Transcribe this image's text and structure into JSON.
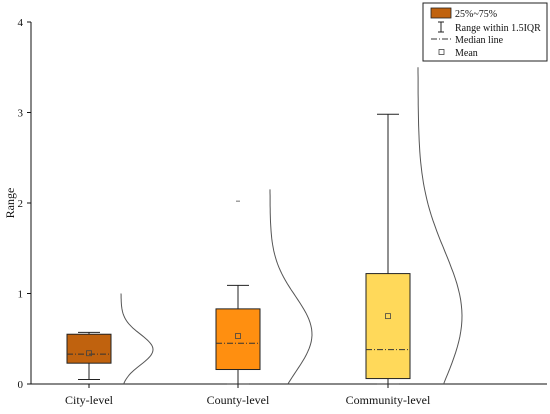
{
  "chart_data": {
    "type": "box",
    "title": "",
    "xlabel": "",
    "ylabel": "Range",
    "ylim": [
      0,
      4
    ],
    "yticks": [
      0,
      1,
      2,
      3,
      4
    ],
    "grid": false,
    "legend_position": "top-right",
    "legend": [
      {
        "label": "25%~75%",
        "symbol": "box",
        "color": "#C0620E"
      },
      {
        "label": "Range within 1.5IQR",
        "symbol": "whisker"
      },
      {
        "label": "Median line",
        "symbol": "dashdot"
      },
      {
        "label": "Mean",
        "symbol": "square"
      }
    ],
    "categories": [
      "City-level",
      "County-level",
      "Community-level"
    ],
    "boxes": [
      {
        "category": "City-level",
        "color": "#C0620E",
        "whisker_low": 0.05,
        "q1": 0.23,
        "median": 0.33,
        "q3": 0.55,
        "whisker_high": 0.57,
        "mean": 0.34,
        "outliers": []
      },
      {
        "category": "County-level",
        "color": "#FF8F10",
        "whisker_low": 0.0,
        "q1": 0.16,
        "median": 0.45,
        "q3": 0.83,
        "whisker_high": 1.09,
        "mean": 0.53,
        "outliers": [
          2.02
        ]
      },
      {
        "category": "Community-level",
        "color": "#FFD95A",
        "whisker_low": 0.0,
        "q1": 0.06,
        "median": 0.38,
        "q3": 1.22,
        "whisker_high": 2.98,
        "mean": 0.75,
        "outliers": []
      }
    ],
    "distributions": [
      {
        "category": "City-level",
        "y_range": [
          0,
          1.0
        ],
        "peak_y": 0.38,
        "spread": 0.17
      },
      {
        "category": "County-level",
        "y_range": [
          0,
          2.15
        ],
        "peak_y": 0.55,
        "spread": 0.42
      },
      {
        "category": "Community-level",
        "y_range": [
          0,
          3.5
        ],
        "peak_y": 0.75,
        "spread": 0.72
      }
    ],
    "colors": {
      "axis": "#111111",
      "box_stroke": "#222222",
      "median_line": "#333333",
      "distribution_line": "#555555"
    }
  }
}
